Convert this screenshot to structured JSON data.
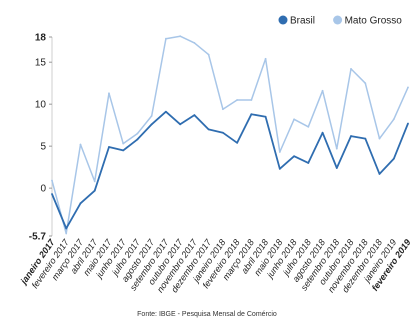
{
  "chart_data": {
    "type": "line",
    "title": "",
    "xlabel": "",
    "ylabel": "",
    "ylim": [
      -5.7,
      18
    ],
    "yticks": [
      {
        "value": 18,
        "label": "18",
        "bold": true
      },
      {
        "value": 15,
        "label": "15",
        "bold": false
      },
      {
        "value": 10,
        "label": "10",
        "bold": false
      },
      {
        "value": 5,
        "label": "5",
        "bold": false
      },
      {
        "value": 0,
        "label": "0",
        "bold": false
      },
      {
        "value": -5.7,
        "label": "-5.7",
        "bold": true
      }
    ],
    "grid": false,
    "legend_position": "top-right",
    "x": [
      "janeiro 2017",
      "fevereiro 2017",
      "março 2017",
      "abril 2017",
      "maio 2017",
      "junho 2017",
      "julho 2017",
      "agosto 2017",
      "setembro 2017",
      "outubro 2017",
      "novembro 2017",
      "dezembro 2017",
      "janeiro 2018",
      "fevereiro 2018",
      "março 2018",
      "abril 2018",
      "maio 2018",
      "junho 2018",
      "julho 2018",
      "agosto 2018",
      "setembro 2018",
      "outubro 2018",
      "novembro 2018",
      "dezembro 2018",
      "janeiro 2019",
      "fevereiro 2019"
    ],
    "x_bold": [
      "janeiro 2017",
      "fevereiro 2019"
    ],
    "series": [
      {
        "name": "Brasil",
        "color": "#2f6db0",
        "values": [
          -0.7,
          -4.8,
          -1.8,
          -0.3,
          4.9,
          4.5,
          5.8,
          7.6,
          9.1,
          7.6,
          8.7,
          7.0,
          6.6,
          5.4,
          8.8,
          8.5,
          2.3,
          3.8,
          3.0,
          6.6,
          2.4,
          6.2,
          5.9,
          1.7,
          3.5,
          7.7
        ]
      },
      {
        "name": "Mato Grosso",
        "color": "#a8c6e8",
        "values": [
          0.9,
          -5.4,
          5.2,
          0.8,
          11.3,
          5.3,
          6.5,
          8.6,
          17.8,
          18.1,
          17.3,
          15.9,
          9.4,
          10.5,
          10.5,
          15.4,
          4.3,
          8.2,
          7.3,
          11.6,
          4.7,
          14.2,
          12.5,
          5.9,
          8.2,
          12.0
        ]
      }
    ]
  },
  "source": "Fonte: IBGE - Pesquisa Mensal de Comércio"
}
